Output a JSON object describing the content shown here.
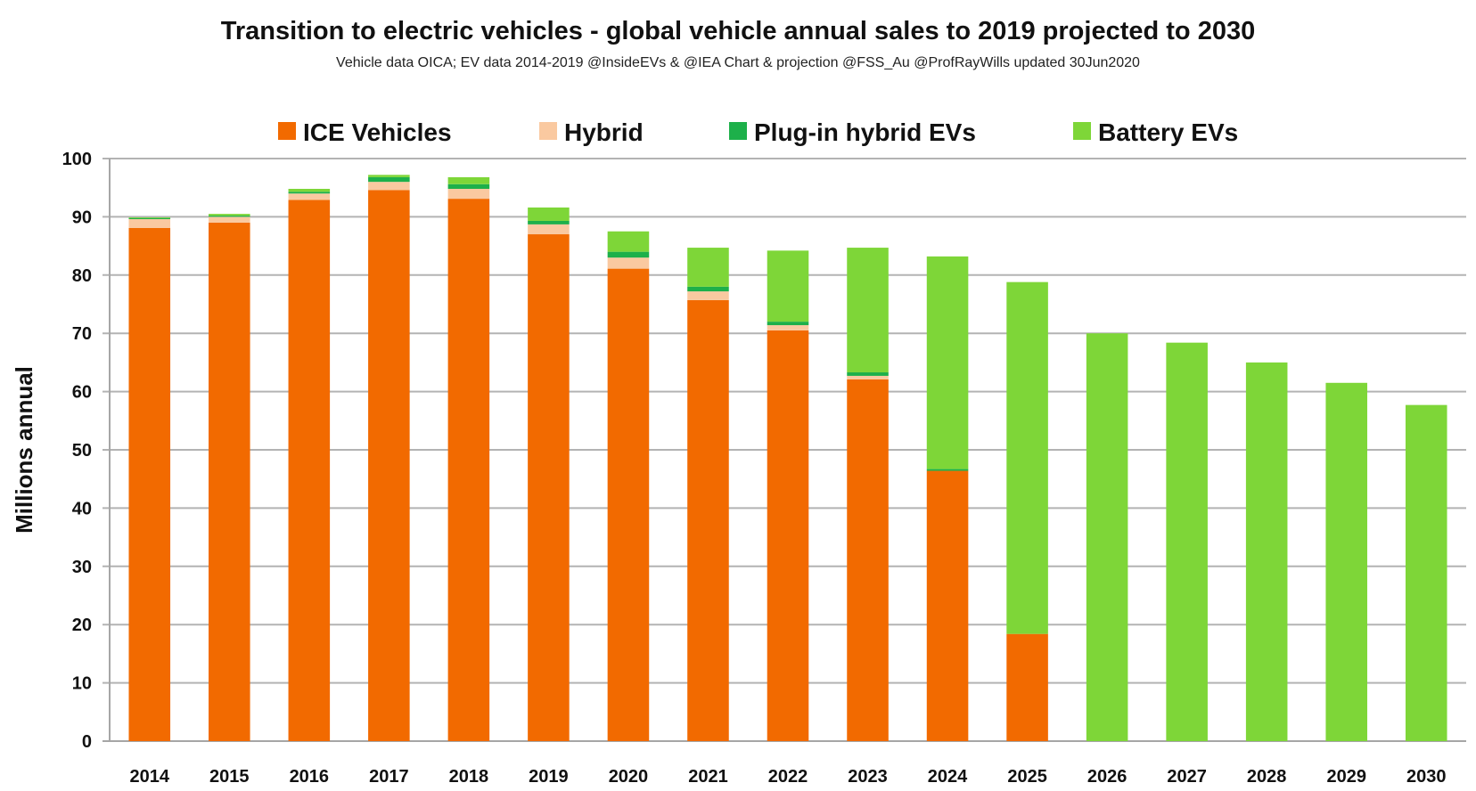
{
  "chart_data": {
    "type": "bar",
    "stacked": true,
    "title": "Transition to electric vehicles  - global vehicle annual sales to 2019 projected to 2030",
    "subtitle": "Vehicle data OICA; EV data 2014-2019 @InsideEVs & @IEA  Chart & projection @FSS_Au @ProfRayWills updated 30Jun2020",
    "xlabel": "",
    "ylabel": "Millions annual",
    "ylim": [
      0,
      100
    ],
    "yticks": [
      0,
      10,
      20,
      30,
      40,
      50,
      60,
      70,
      80,
      90,
      100
    ],
    "grid": true,
    "legend_position": "top",
    "categories": [
      "2014",
      "2015",
      "2016",
      "2017",
      "2018",
      "2019",
      "2020",
      "2021",
      "2022",
      "2023",
      "2024",
      "2025",
      "2026",
      "2027",
      "2028",
      "2029",
      "2030"
    ],
    "series": [
      {
        "name": "ICE Vehicles",
        "color": "#F26A00",
        "values": [
          88.1,
          89.0,
          92.9,
          94.6,
          93.1,
          87.0,
          81.1,
          75.7,
          70.5,
          62.1,
          46.4,
          18.4,
          0,
          0,
          0,
          0,
          0
        ]
      },
      {
        "name": "Hybrid",
        "color": "#FAC9A0",
        "values": [
          1.5,
          1.0,
          1.1,
          1.4,
          1.7,
          1.7,
          1.9,
          1.5,
          0.9,
          0.6,
          0,
          0,
          0,
          0,
          0,
          0,
          0
        ]
      },
      {
        "name": "Plug-in hybrid EVs",
        "color": "#1DB04A",
        "values": [
          0.2,
          0.2,
          0.3,
          0.8,
          0.8,
          0.6,
          1.0,
          0.8,
          0.6,
          0.6,
          0.3,
          0,
          0,
          0,
          0,
          0,
          0
        ]
      },
      {
        "name": "Battery EVs",
        "color": "#7ED638",
        "values": [
          0.1,
          0.3,
          0.5,
          0.4,
          1.2,
          2.3,
          3.5,
          6.7,
          12.2,
          21.4,
          36.5,
          60.4,
          70.0,
          68.4,
          65.0,
          61.5,
          57.7
        ]
      }
    ]
  }
}
